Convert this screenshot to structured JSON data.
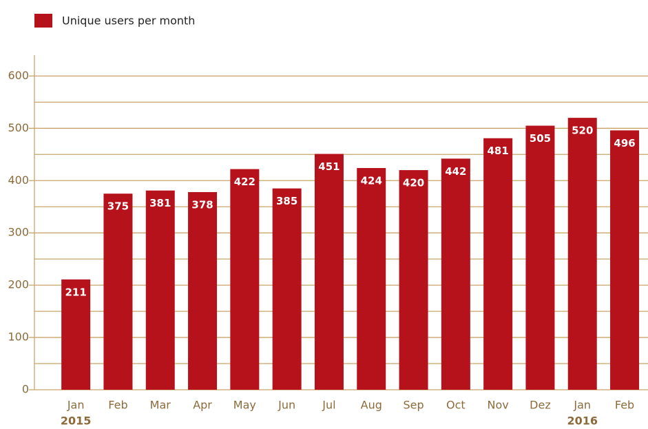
{
  "chart_data": {
    "type": "bar",
    "legend": "Unique users per month",
    "series": [
      {
        "name": "Unique users per month",
        "color": "#b5121b",
        "values": [
          211,
          375,
          381,
          378,
          422,
          385,
          451,
          424,
          420,
          442,
          481,
          505,
          520,
          496
        ]
      }
    ],
    "categories": [
      "Jan",
      "Feb",
      "Mar",
      "Apr",
      "May",
      "Jun",
      "Jul",
      "Aug",
      "Sep",
      "Oct",
      "Nov",
      "Dez",
      "Jan",
      "Feb"
    ],
    "x_sublabels": [
      "2015",
      null,
      null,
      null,
      null,
      null,
      null,
      null,
      null,
      null,
      null,
      null,
      "2016",
      null
    ],
    "ylim": [
      0,
      640
    ],
    "yticks": [
      0,
      100,
      200,
      300,
      400,
      500,
      600
    ],
    "minor_yticks": [
      50,
      150,
      250,
      350,
      450,
      550
    ],
    "grid": true,
    "grid_color": "#c9a468"
  }
}
